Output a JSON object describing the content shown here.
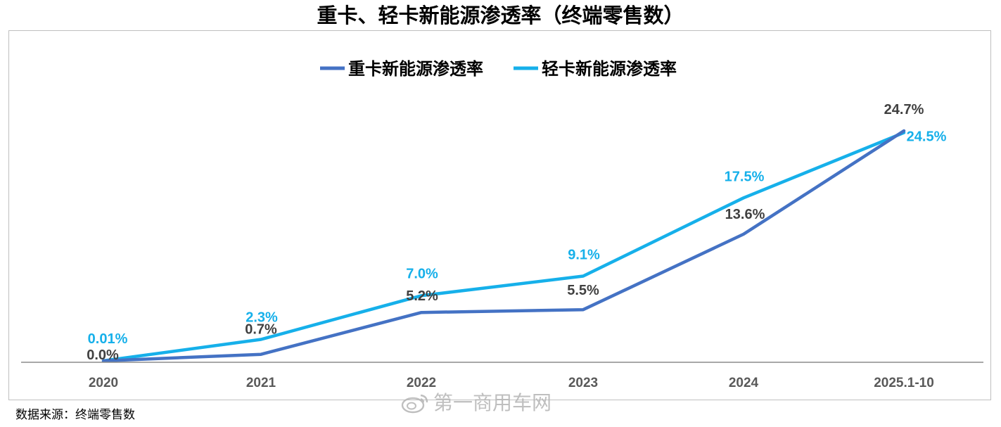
{
  "chart_data": {
    "type": "line",
    "title": "重卡、轻卡新能源渗透率（终端零售数）",
    "categories": [
      "2020",
      "2021",
      "2022",
      "2023",
      "2024",
      "2025.1-10"
    ],
    "series": [
      {
        "name": "重卡新能源渗透率",
        "color": "#4472c4",
        "values": [
          0.0,
          0.7,
          5.2,
          5.5,
          13.6,
          24.7
        ],
        "labels": [
          "0.0%",
          "0.7%",
          "5.2%",
          "5.5%",
          "13.6%",
          "24.7%"
        ]
      },
      {
        "name": "轻卡新能源渗透率",
        "color": "#16b0ea",
        "values": [
          0.01,
          2.3,
          7.0,
          9.1,
          17.5,
          24.5
        ],
        "labels": [
          "0.01%",
          "2.3%",
          "7.0%",
          "9.1%",
          "17.5%",
          "24.5%"
        ]
      }
    ],
    "ylim": [
      0,
      25
    ],
    "grid": false,
    "legend_position": "top-center"
  },
  "source_note": "数据来源：终端零售数",
  "watermark": {
    "text": "第一商用车网",
    "icon": "weibo-logo"
  }
}
